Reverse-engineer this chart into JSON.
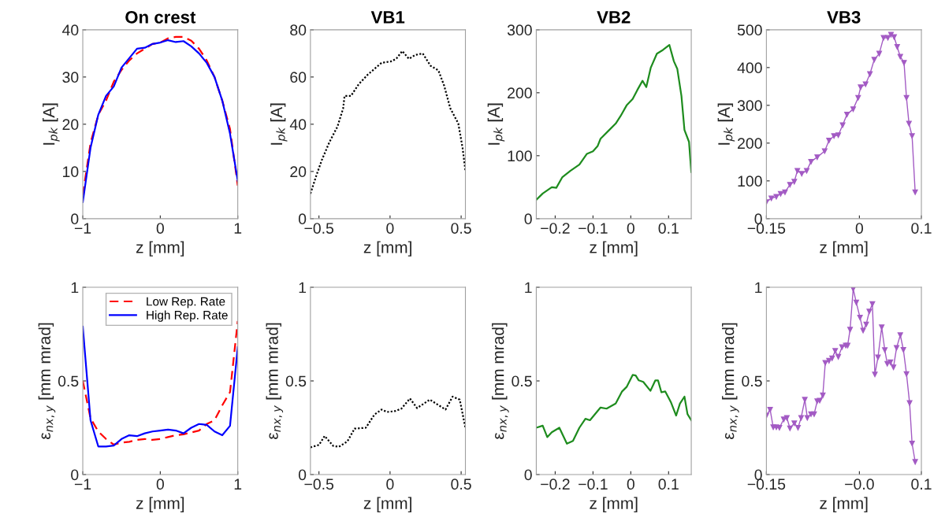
{
  "chart_data": [
    {
      "type": "line",
      "title": "On crest",
      "xlabel": "z [mm]",
      "ylabel": "I$_{pk}$ [A]",
      "xlim": [
        -1,
        1
      ],
      "xticks": [
        {
          "value": -1,
          "label": "−1"
        },
        0,
        1
      ],
      "ylim": [
        0,
        40
      ],
      "yticks": [
        0,
        10,
        20,
        30,
        40
      ],
      "grid": false,
      "series": [
        {
          "color": "#ff0000",
          "line_style": "dashed",
          "x": [
            -1,
            -0.9,
            -0.8,
            -0.7,
            -0.6,
            -0.5,
            -0.4,
            -0.3,
            -0.2,
            -0.1,
            0,
            0.1,
            0.2,
            0.3,
            0.4,
            0.5,
            0.6,
            0.7,
            0.8,
            0.9,
            1.0
          ],
          "values": [
            5,
            16,
            22,
            25,
            29,
            31.5,
            33.5,
            35,
            36,
            37,
            37.3,
            38.2,
            38.5,
            38.5,
            37.7,
            36,
            33.5,
            30,
            25,
            19,
            7
          ]
        },
        {
          "color": "#0000ff",
          "line_style": "solid",
          "x": [
            -1,
            -0.9,
            -0.8,
            -0.7,
            -0.6,
            -0.5,
            -0.4,
            -0.3,
            -0.2,
            -0.1,
            0,
            0.1,
            0.2,
            0.3,
            0.4,
            0.5,
            0.6,
            0.7,
            0.8,
            0.9,
            1.0
          ],
          "values": [
            3.5,
            15,
            22,
            26,
            28,
            32,
            34,
            36,
            36.2,
            37,
            37.3,
            37.8,
            37.4,
            37.6,
            36.5,
            35,
            33,
            30,
            25,
            18,
            8
          ]
        }
      ]
    },
    {
      "type": "line",
      "title": "VB1",
      "xlabel": "z [mm]",
      "ylabel": "I$_{pk}$ [A]",
      "xlim": [
        -0.56,
        0.53
      ],
      "xticks": [
        {
          "value": -0.5,
          "label": "−0.5"
        },
        0,
        0.5
      ],
      "ylim": [
        0,
        80
      ],
      "yticks": [
        0,
        20,
        40,
        60,
        80
      ],
      "grid": false,
      "series": [
        {
          "color": "#000000",
          "line_style": "dotted",
          "x": [
            -0.56,
            -0.52,
            -0.48,
            -0.426,
            -0.37,
            -0.33,
            -0.32,
            -0.275,
            -0.22,
            -0.157,
            -0.06,
            0.015,
            0.047,
            0.086,
            0.133,
            0.176,
            0.23,
            0.284,
            0.34,
            0.38,
            0.424,
            0.48,
            0.51,
            0.53
          ],
          "values": [
            10.6,
            18,
            24.8,
            32.5,
            39,
            46.7,
            52,
            52,
            57,
            61,
            66,
            66.7,
            68,
            71,
            67.7,
            69.3,
            70,
            64.8,
            62.8,
            56.4,
            46.7,
            40.3,
            30,
            20.3
          ]
        }
      ]
    },
    {
      "type": "line",
      "title": "VB2",
      "xlabel": "z [mm]",
      "ylabel": "I$_{pk}$ [A]",
      "xlim": [
        -0.25,
        0.16
      ],
      "xticks": [
        {
          "value": -0.2,
          "label": "−0.2"
        },
        {
          "value": -0.1,
          "label": "−0.1"
        },
        0,
        0.1
      ],
      "ylim": [
        0,
        300
      ],
      "yticks": [
        0,
        100,
        200,
        300
      ],
      "grid": false,
      "series": [
        {
          "color": "#1e8c1e",
          "line_style": "solid",
          "x": [
            -0.25,
            -0.233,
            -0.209,
            -0.197,
            -0.181,
            -0.16,
            -0.136,
            -0.116,
            -0.1,
            -0.088,
            -0.08,
            -0.06,
            -0.04,
            -0.027,
            -0.011,
            0.005,
            0.017,
            0.031,
            0.041,
            0.053,
            0.069,
            0.085,
            0.102,
            0.114,
            0.123,
            0.134,
            0.142,
            0.154,
            0.16
          ],
          "values": [
            30,
            40,
            50,
            49,
            66,
            76,
            86,
            103,
            107,
            115,
            127,
            139,
            151,
            163,
            180,
            190,
            204,
            219,
            209,
            240,
            262,
            268,
            276,
            250,
            238,
            195,
            141,
            122,
            74
          ]
        }
      ]
    },
    {
      "type": "line",
      "title": "VB3",
      "xlabel": "z [mm]",
      "ylabel": "I$_{pk}$ [A]",
      "xlim": [
        -0.15,
        0.1
      ],
      "xticks": [
        {
          "value": -0.15,
          "label": "−0.15"
        },
        0,
        0.1
      ],
      "ylim": [
        0,
        500
      ],
      "yticks": [
        0,
        100,
        200,
        300,
        400,
        500
      ],
      "grid": false,
      "marker": "triangle",
      "series": [
        {
          "color": "#a35bc4",
          "line_style": "solid",
          "x": [
            -0.15,
            -0.142,
            -0.134,
            -0.127,
            -0.12,
            -0.112,
            -0.105,
            -0.1,
            -0.093,
            -0.085,
            -0.078,
            -0.068,
            -0.056,
            -0.049,
            -0.041,
            -0.034,
            -0.027,
            -0.02,
            -0.01,
            -0.002,
            0.002,
            0.01,
            0.017,
            0.024,
            0.032,
            0.039,
            0.046,
            0.051,
            0.056,
            0.061,
            0.066,
            0.072,
            0.076,
            0.08,
            0.085,
            0.09
          ],
          "values": [
            44,
            54,
            58,
            66,
            70,
            90,
            98,
            127,
            119,
            127,
            151,
            163,
            179,
            207,
            219,
            221,
            247.6,
            276,
            290,
            320,
            348,
            356,
            383,
            421,
            437,
            479,
            479,
            487,
            481,
            455,
            429,
            413,
            320,
            252,
            219,
            70
          ]
        }
      ]
    },
    {
      "type": "line",
      "xlabel": "z [mm]",
      "ylabel": "ε$_{nx,y}$ [mm mrad]",
      "xlim": [
        -1,
        1
      ],
      "xticks": [
        {
          "value": -1,
          "label": "−1"
        },
        0,
        1
      ],
      "ylim": [
        0,
        1
      ],
      "yticks": [
        0,
        0.5,
        1
      ],
      "grid": false,
      "legend": "top right",
      "series": [
        {
          "name": "Low Rep. Rate",
          "color": "#ff0000",
          "line_style": "dashed",
          "x": [
            -1,
            -0.9,
            -0.8,
            -0.7,
            -0.6,
            -0.5,
            -0.4,
            -0.3,
            -0.2,
            -0.1,
            0,
            0.1,
            0.2,
            0.3,
            0.4,
            0.5,
            0.6,
            0.7,
            0.8,
            0.9,
            1.0
          ],
          "values": [
            0.5,
            0.3,
            0.23,
            0.19,
            0.16,
            0.17,
            0.175,
            0.185,
            0.19,
            0.185,
            0.19,
            0.2,
            0.21,
            0.215,
            0.225,
            0.235,
            0.27,
            0.29,
            0.37,
            0.44,
            0.82
          ]
        },
        {
          "name": "High Rep. Rate",
          "color": "#0000ff",
          "line_style": "solid",
          "x": [
            -1,
            -0.9,
            -0.8,
            -0.7,
            -0.6,
            -0.5,
            -0.4,
            -0.3,
            -0.2,
            -0.1,
            0,
            0.1,
            0.2,
            0.3,
            0.4,
            0.5,
            0.6,
            0.7,
            0.8,
            0.9,
            1.0
          ],
          "values": [
            0.79,
            0.29,
            0.15,
            0.15,
            0.155,
            0.19,
            0.21,
            0.205,
            0.22,
            0.23,
            0.235,
            0.24,
            0.235,
            0.22,
            0.25,
            0.27,
            0.265,
            0.23,
            0.21,
            0.26,
            0.68
          ]
        }
      ]
    },
    {
      "type": "line",
      "xlabel": "z [mm]",
      "ylabel": "ε$_{nx,y}$ [mm mrad]",
      "xlim": [
        -0.56,
        0.53
      ],
      "xticks": [
        {
          "value": -0.5,
          "label": "−0.5"
        },
        0,
        0.5
      ],
      "ylim": [
        0,
        1
      ],
      "yticks": [
        0,
        0.5,
        1
      ],
      "grid": false,
      "series": [
        {
          "color": "#000000",
          "line_style": "dotted",
          "x": [
            -0.56,
            -0.5,
            -0.46,
            -0.4,
            -0.36,
            -0.3,
            -0.25,
            -0.17,
            -0.11,
            -0.06,
            -0.02,
            0.036,
            0.08,
            0.14,
            0.19,
            0.28,
            0.34,
            0.39,
            0.44,
            0.49,
            0.53
          ],
          "values": [
            0.145,
            0.158,
            0.206,
            0.153,
            0.148,
            0.177,
            0.245,
            0.25,
            0.32,
            0.347,
            0.334,
            0.339,
            0.352,
            0.406,
            0.355,
            0.4,
            0.371,
            0.347,
            0.416,
            0.4,
            0.25
          ]
        }
      ]
    },
    {
      "type": "line",
      "xlabel": "z [mm]",
      "ylabel": "ε$_{nx,y}$ [mm mrad]",
      "xlim": [
        -0.25,
        0.16
      ],
      "xticks": [
        {
          "value": -0.2,
          "label": "−0.2"
        },
        {
          "value": -0.1,
          "label": "−0.1"
        },
        0,
        0.1
      ],
      "ylim": [
        0,
        1
      ],
      "yticks": [
        0,
        0.5,
        1
      ],
      "grid": false,
      "series": [
        {
          "color": "#1e8c1e",
          "line_style": "solid",
          "x": [
            -0.25,
            -0.233,
            -0.221,
            -0.209,
            -0.189,
            -0.169,
            -0.153,
            -0.136,
            -0.12,
            -0.108,
            -0.08,
            -0.064,
            -0.04,
            -0.023,
            -0.011,
            0.005,
            0.013,
            0.021,
            0.033,
            0.052,
            0.065,
            0.072,
            0.081,
            0.091,
            0.106,
            0.12,
            0.13,
            0.142,
            0.15,
            0.16
          ],
          "values": [
            0.25,
            0.261,
            0.2,
            0.226,
            0.25,
            0.165,
            0.18,
            0.25,
            0.298,
            0.29,
            0.358,
            0.352,
            0.379,
            0.444,
            0.468,
            0.532,
            0.529,
            0.503,
            0.495,
            0.447,
            0.503,
            0.503,
            0.439,
            0.444,
            0.387,
            0.315,
            0.379,
            0.416,
            0.323,
            0.29
          ]
        }
      ]
    },
    {
      "type": "line",
      "xlabel": "z [mm]",
      "ylabel": "ε$_{nx,y}$ [mm mrad]",
      "xlim": [
        -0.15,
        0.1
      ],
      "xticks": [
        {
          "value": -0.15,
          "label": "−0.15"
        },
        {
          "value": 0,
          "label": "−0.0"
        },
        0.1
      ],
      "ylim": [
        0,
        1
      ],
      "yticks": [
        0,
        0.5,
        1
      ],
      "grid": false,
      "marker": "triangle",
      "series": [
        {
          "color": "#a35bc4",
          "line_style": "solid",
          "x": [
            -0.15,
            -0.144,
            -0.139,
            -0.134,
            -0.129,
            -0.122,
            -0.117,
            -0.112,
            -0.105,
            -0.099,
            -0.094,
            -0.088,
            -0.084,
            -0.078,
            -0.073,
            -0.068,
            -0.064,
            -0.059,
            -0.055,
            -0.049,
            -0.044,
            -0.039,
            -0.034,
            -0.028,
            -0.022,
            -0.019,
            -0.015,
            -0.01,
            -0.005,
            0.001,
            0.006,
            0.011,
            0.016,
            0.021,
            0.025,
            0.03,
            0.036,
            0.041,
            0.045,
            0.05,
            0.055,
            0.06,
            0.066,
            0.071,
            0.076,
            0.081,
            0.085,
            0.09
          ],
          "values": [
            0.315,
            0.347,
            0.253,
            0.253,
            0.25,
            0.295,
            0.303,
            0.247,
            0.274,
            0.25,
            0.303,
            0.4,
            0.303,
            0.323,
            0.323,
            0.392,
            0.395,
            0.423,
            0.597,
            0.608,
            0.621,
            0.661,
            0.629,
            0.681,
            0.689,
            0.689,
            0.774,
            0.992,
            0.919,
            0.839,
            0.769,
            0.802,
            0.871,
            0.911,
            0.535,
            0.626,
            0.787,
            0.665,
            0.592,
            0.6,
            0.573,
            0.677,
            0.745,
            0.666,
            0.537,
            0.382,
            0.166,
            0.068
          ]
        }
      ]
    }
  ]
}
